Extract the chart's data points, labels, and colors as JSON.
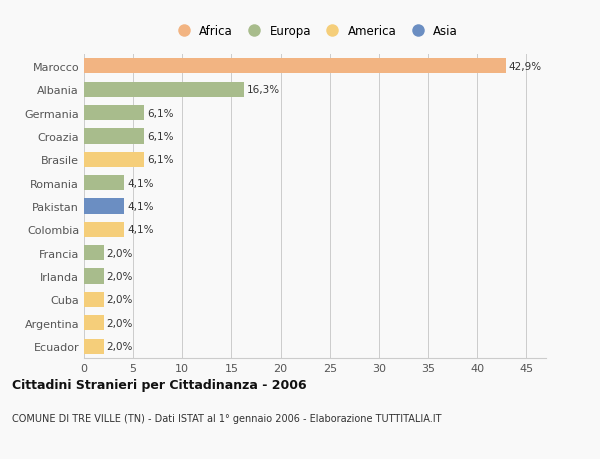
{
  "categories": [
    "Marocco",
    "Albania",
    "Germania",
    "Croazia",
    "Brasile",
    "Romania",
    "Pakistan",
    "Colombia",
    "Francia",
    "Irlanda",
    "Cuba",
    "Argentina",
    "Ecuador"
  ],
  "values": [
    42.9,
    16.3,
    6.1,
    6.1,
    6.1,
    4.1,
    4.1,
    4.1,
    2.0,
    2.0,
    2.0,
    2.0,
    2.0
  ],
  "labels": [
    "42,9%",
    "16,3%",
    "6,1%",
    "6,1%",
    "6,1%",
    "4,1%",
    "4,1%",
    "4,1%",
    "2,0%",
    "2,0%",
    "2,0%",
    "2,0%",
    "2,0%"
  ],
  "colors": [
    "#F2B482",
    "#A8BC8C",
    "#A8BC8C",
    "#A8BC8C",
    "#F5CE7A",
    "#A8BC8C",
    "#6B8EC2",
    "#F5CE7A",
    "#A8BC8C",
    "#A8BC8C",
    "#F5CE7A",
    "#F5CE7A",
    "#F5CE7A"
  ],
  "legend_labels": [
    "Africa",
    "Europa",
    "America",
    "Asia"
  ],
  "legend_colors": [
    "#F2B482",
    "#A8BC8C",
    "#F5CE7A",
    "#6B8EC2"
  ],
  "xlim": [
    0,
    47
  ],
  "xticks": [
    0,
    5,
    10,
    15,
    20,
    25,
    30,
    35,
    40,
    45
  ],
  "title": "Cittadini Stranieri per Cittadinanza - 2006",
  "subtitle": "COMUNE DI TRE VILLE (TN) - Dati ISTAT al 1° gennaio 2006 - Elaborazione TUTTITALIA.IT",
  "bg_color": "#f9f9f9",
  "grid_color": "#cccccc"
}
